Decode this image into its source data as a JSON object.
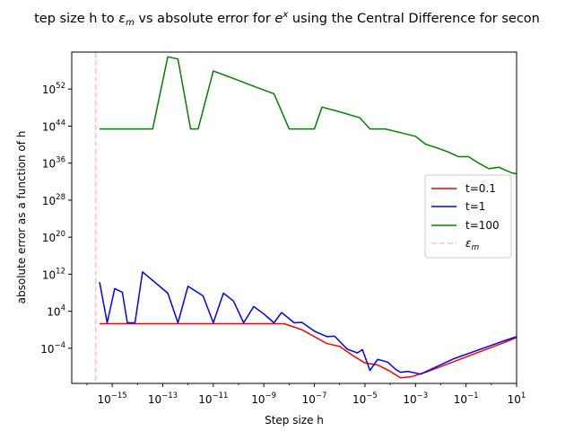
{
  "chart_data": {
    "type": "line",
    "title_main": "tep size h to ",
    "title_eps": "ε",
    "title_eps_sub": "m",
    "title_mid": " vs absolute error for ",
    "title_e": "e",
    "title_e_sup": "x",
    "title_tail": " using the Central Difference for secon",
    "xlabel": "Step size h",
    "ylabel": "absolute error as a function of h",
    "xscale": "log",
    "yscale": "log",
    "xlim_log10": [
      -16.6,
      1.0
    ],
    "ylim_log10": [
      -11.6,
      60.0
    ],
    "x_ticks": [
      {
        "exp": -15,
        "base": "10",
        "sup": "−15"
      },
      {
        "exp": -13,
        "base": "10",
        "sup": "−13"
      },
      {
        "exp": -11,
        "base": "10",
        "sup": "−11"
      },
      {
        "exp": -9,
        "base": "10",
        "sup": "−9"
      },
      {
        "exp": -7,
        "base": "10",
        "sup": "−7"
      },
      {
        "exp": -5,
        "base": "10",
        "sup": "−5"
      },
      {
        "exp": -3,
        "base": "10",
        "sup": "−3"
      },
      {
        "exp": -1,
        "base": "10",
        "sup": "−1"
      },
      {
        "exp": 1,
        "base": "10",
        "sup": "1"
      }
    ],
    "y_ticks": [
      {
        "exp": -4,
        "base": "10",
        "sup": "−4"
      },
      {
        "exp": 4,
        "base": "10",
        "sup": "4"
      },
      {
        "exp": 12,
        "base": "10",
        "sup": "12"
      },
      {
        "exp": 20,
        "base": "10",
        "sup": "20"
      },
      {
        "exp": 28,
        "base": "10",
        "sup": "28"
      },
      {
        "exp": 36,
        "base": "10",
        "sup": "36"
      },
      {
        "exp": 44,
        "base": "10",
        "sup": "44"
      },
      {
        "exp": 52,
        "base": "10",
        "sup": "52"
      }
    ],
    "epsilon_m_log10": -15.65,
    "legend_position": "center-right",
    "series": [
      {
        "name": "t=0.1",
        "color": "#ff0000",
        "points_log10": [
          [
            -15.5,
            1.3
          ],
          [
            -9.0,
            1.3
          ],
          [
            -8.2,
            1.3
          ],
          [
            -7.5,
            0.0
          ],
          [
            -7.0,
            -1.5
          ],
          [
            -6.5,
            -3.0
          ],
          [
            -6.0,
            -3.6
          ],
          [
            -5.5,
            -5.5
          ],
          [
            -5.0,
            -7.2
          ],
          [
            -4.5,
            -7.6
          ],
          [
            -4.0,
            -9.0
          ],
          [
            -3.6,
            -10.4
          ],
          [
            -3.2,
            -10.2
          ],
          [
            -2.5,
            -9.0
          ],
          [
            -1.0,
            -5.9
          ],
          [
            0.5,
            -2.8
          ],
          [
            2.0,
            0.5
          ],
          [
            3.0,
            1.3
          ]
        ]
      },
      {
        "name": "t=1",
        "color": "#0000ff",
        "points_log10": [
          [
            -15.5,
            10.3
          ],
          [
            -15.2,
            1.5
          ],
          [
            -14.9,
            8.9
          ],
          [
            -14.6,
            8.1
          ],
          [
            -14.4,
            1.5
          ],
          [
            -14.1,
            1.5
          ],
          [
            -13.8,
            12.5
          ],
          [
            -12.8,
            7.9
          ],
          [
            -12.4,
            1.5
          ],
          [
            -12.0,
            9.4
          ],
          [
            -11.4,
            7.3
          ],
          [
            -11.0,
            1.5
          ],
          [
            -10.6,
            7.9
          ],
          [
            -10.2,
            6.2
          ],
          [
            -9.8,
            1.5
          ],
          [
            -9.4,
            5.0
          ],
          [
            -9.0,
            3.4
          ],
          [
            -8.6,
            1.5
          ],
          [
            -8.3,
            3.7
          ],
          [
            -7.8,
            1.5
          ],
          [
            -7.5,
            1.6
          ],
          [
            -7.0,
            -0.3
          ],
          [
            -6.5,
            -1.5
          ],
          [
            -6.2,
            -1.4
          ],
          [
            -5.7,
            -4.2
          ],
          [
            -5.3,
            -5.0
          ],
          [
            -5.1,
            -4.3
          ],
          [
            -4.8,
            -8.8
          ],
          [
            -4.5,
            -6.4
          ],
          [
            -4.1,
            -7.0
          ],
          [
            -3.8,
            -8.5
          ],
          [
            -3.6,
            -9.2
          ],
          [
            -3.3,
            -9.0
          ],
          [
            -2.8,
            -9.6
          ],
          [
            -1.5,
            -6.3
          ],
          [
            0.5,
            -2.4
          ],
          [
            2.0,
            0.3
          ],
          [
            3.0,
            1.7
          ]
        ]
      },
      {
        "name": "t=100",
        "color": "#008000",
        "points_log10": [
          [
            -15.5,
            43.4
          ],
          [
            -13.4,
            43.4
          ],
          [
            -12.8,
            59.0
          ],
          [
            -12.4,
            58.5
          ],
          [
            -11.9,
            43.4
          ],
          [
            -11.6,
            43.4
          ],
          [
            -11.0,
            55.9
          ],
          [
            -10.2,
            54.3
          ],
          [
            -9.4,
            52.6
          ],
          [
            -8.6,
            51.0
          ],
          [
            -8.0,
            43.4
          ],
          [
            -7.5,
            43.4
          ],
          [
            -7.0,
            43.4
          ],
          [
            -6.7,
            48.1
          ],
          [
            -6.0,
            47.1
          ],
          [
            -5.2,
            45.8
          ],
          [
            -4.8,
            43.4
          ],
          [
            -4.2,
            43.4
          ],
          [
            -3.6,
            42.6
          ],
          [
            -3.0,
            41.8
          ],
          [
            -2.6,
            40.1
          ],
          [
            -2.2,
            39.4
          ],
          [
            -1.7,
            38.4
          ],
          [
            -1.3,
            37.4
          ],
          [
            -0.9,
            37.4
          ],
          [
            -0.5,
            36.0
          ],
          [
            -0.1,
            34.8
          ],
          [
            0.3,
            35.1
          ],
          [
            0.8,
            33.9
          ],
          [
            1.1,
            33.6
          ],
          [
            1.5,
            31.9
          ],
          [
            2.0,
            33.1
          ],
          [
            3.0,
            34.9
          ],
          [
            5.0,
            36.9
          ],
          [
            7.0,
            38.6
          ],
          [
            9.0,
            40.9
          ],
          [
            11.0,
            43.5
          ]
        ]
      }
    ],
    "legend_eps_label_base": "ε",
    "legend_eps_label_sub": "m"
  }
}
